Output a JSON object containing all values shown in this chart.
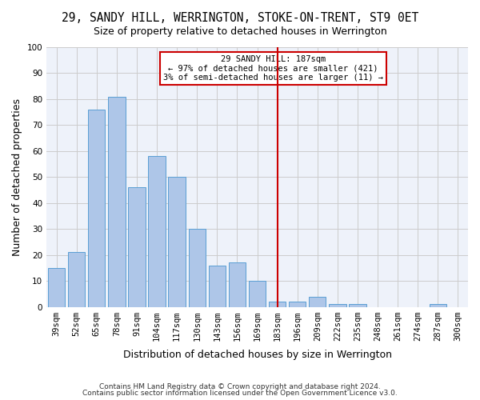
{
  "title1": "29, SANDY HILL, WERRINGTON, STOKE-ON-TRENT, ST9 0ET",
  "title2": "Size of property relative to detached houses in Werrington",
  "xlabel": "Distribution of detached houses by size in Werrington",
  "ylabel": "Number of detached properties",
  "footer1": "Contains HM Land Registry data © Crown copyright and database right 2024.",
  "footer2": "Contains public sector information licensed under the Open Government Licence v3.0.",
  "bins": [
    "39sqm",
    "52sqm",
    "65sqm",
    "78sqm",
    "91sqm",
    "104sqm",
    "117sqm",
    "130sqm",
    "143sqm",
    "156sqm",
    "169sqm",
    "183sqm",
    "196sqm",
    "209sqm",
    "222sqm",
    "235sqm",
    "248sqm",
    "261sqm",
    "274sqm",
    "287sqm",
    "300sqm"
  ],
  "values": [
    15,
    21,
    76,
    81,
    46,
    58,
    50,
    30,
    16,
    17,
    10,
    2,
    2,
    4,
    1,
    1,
    0,
    0,
    0,
    1,
    0
  ],
  "bar_color": "#aec6e8",
  "bar_edge_color": "#5a9fd4",
  "highlight_bin_index": 11,
  "vline_color": "#cc0000",
  "annotation_text": "29 SANDY HILL: 187sqm\n← 97% of detached houses are smaller (421)\n3% of semi-detached houses are larger (11) →",
  "annotation_box_color": "#cc0000",
  "ylim": [
    0,
    100
  ],
  "yticks": [
    0,
    10,
    20,
    30,
    40,
    50,
    60,
    70,
    80,
    90,
    100
  ],
  "grid_color": "#cccccc",
  "background_color": "#eef2fa",
  "title_fontsize": 10.5,
  "axis_label_fontsize": 9,
  "tick_fontsize": 7.5
}
